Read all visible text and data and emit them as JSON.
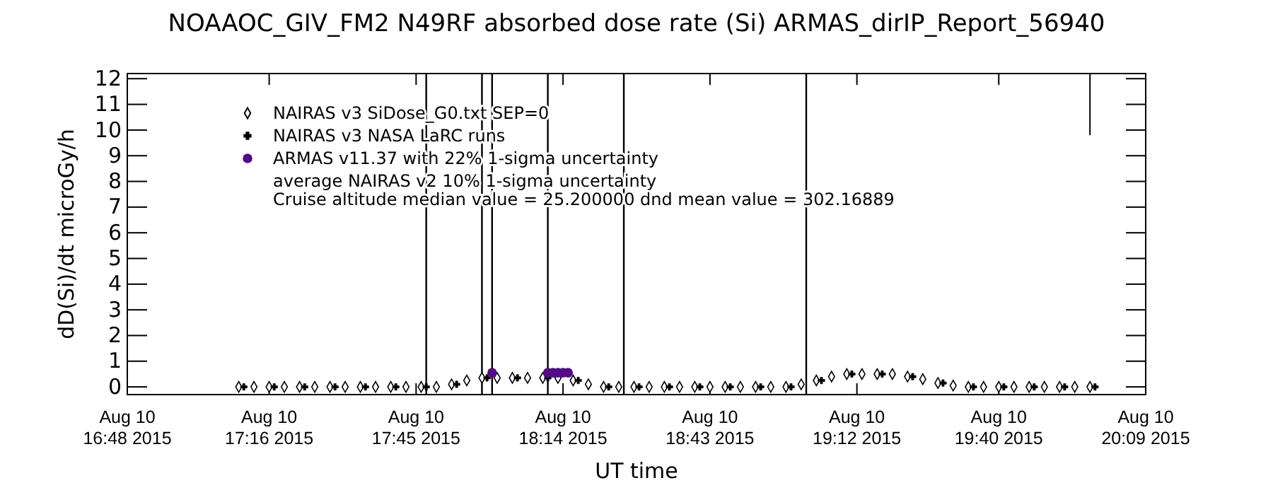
{
  "chart_data": {
    "type": "scatter",
    "title": "NOAAOC_GIV_FM2   N49RF  absorbed dose rate (Si) ARMAS_dirIP_Report_56940",
    "xlabel": "UT time",
    "ylabel": "dD(Si)/dt microGy/h",
    "xlim": [
      "2015-08-10T16:48",
      "2015-08-10T20:09"
    ],
    "xticks": [
      {
        "value": "2015-08-10T16:48",
        "label": "Aug 10\n16:48 2015"
      },
      {
        "value": "2015-08-10T17:16",
        "label": "Aug 10\n17:16 2015"
      },
      {
        "value": "2015-08-10T17:45",
        "label": "Aug 10\n17:45 2015"
      },
      {
        "value": "2015-08-10T18:14",
        "label": "Aug 10\n18:14 2015"
      },
      {
        "value": "2015-08-10T18:43",
        "label": "Aug 10\n18:43 2015"
      },
      {
        "value": "2015-08-10T19:12",
        "label": "Aug 10\n19:12 2015"
      },
      {
        "value": "2015-08-10T19:40",
        "label": "Aug 10\n19:40 2015"
      },
      {
        "value": "2015-08-10T20:09",
        "label": "Aug 10\n20:09 2015"
      }
    ],
    "ylim": [
      -0.3,
      12.2
    ],
    "yticks": [
      0,
      1,
      2,
      3,
      4,
      5,
      6,
      7,
      8,
      9,
      10,
      11,
      12
    ],
    "legend": "top left",
    "series": [
      {
        "name": "NAIRAS v3 SiDose_G0.txt SEP=0",
        "marker": "diamond",
        "color": "#000000",
        "x": [
          "2015-08-10T17:10",
          "2015-08-10T17:13",
          "2015-08-10T17:16",
          "2015-08-10T17:19",
          "2015-08-10T17:22",
          "2015-08-10T17:25",
          "2015-08-10T17:28",
          "2015-08-10T17:31",
          "2015-08-10T17:34",
          "2015-08-10T17:37",
          "2015-08-10T17:40",
          "2015-08-10T17:43",
          "2015-08-10T17:46",
          "2015-08-10T17:49",
          "2015-08-10T17:52",
          "2015-08-10T17:55",
          "2015-08-10T17:58",
          "2015-08-10T18:01",
          "2015-08-10T18:04",
          "2015-08-10T18:07",
          "2015-08-10T18:10",
          "2015-08-10T18:13",
          "2015-08-10T18:16",
          "2015-08-10T18:19",
          "2015-08-10T18:22",
          "2015-08-10T18:25",
          "2015-08-10T18:28",
          "2015-08-10T18:31",
          "2015-08-10T18:34",
          "2015-08-10T18:37",
          "2015-08-10T18:40",
          "2015-08-10T18:43",
          "2015-08-10T18:46",
          "2015-08-10T18:49",
          "2015-08-10T18:52",
          "2015-08-10T18:55",
          "2015-08-10T18:58",
          "2015-08-10T19:01",
          "2015-08-10T19:04",
          "2015-08-10T19:07",
          "2015-08-10T19:10",
          "2015-08-10T19:13",
          "2015-08-10T19:16",
          "2015-08-10T19:19",
          "2015-08-10T19:22",
          "2015-08-10T19:25",
          "2015-08-10T19:28",
          "2015-08-10T19:31",
          "2015-08-10T19:34",
          "2015-08-10T19:37",
          "2015-08-10T19:40",
          "2015-08-10T19:43",
          "2015-08-10T19:46",
          "2015-08-10T19:49",
          "2015-08-10T19:52",
          "2015-08-10T19:55",
          "2015-08-10T19:58"
        ],
        "values": [
          0,
          0,
          0,
          0,
          0,
          0,
          0,
          0,
          0,
          0,
          0,
          0,
          0,
          0,
          0.1,
          0.25,
          0.35,
          0.35,
          0.35,
          0.35,
          0.35,
          0.35,
          0.25,
          0.1,
          0,
          0,
          0,
          0,
          0,
          0,
          0,
          0,
          0,
          0,
          0,
          0,
          0,
          0.1,
          0.25,
          0.4,
          0.5,
          0.5,
          0.5,
          0.5,
          0.4,
          0.3,
          0.15,
          0.05,
          0,
          0,
          0,
          0,
          0,
          0,
          0,
          0,
          0
        ]
      },
      {
        "name": "NAIRAS v3 NASA LaRC runs",
        "marker": "cross",
        "color": "#000000",
        "x": [
          "2015-08-10T17:11",
          "2015-08-10T17:17",
          "2015-08-10T17:23",
          "2015-08-10T17:29",
          "2015-08-10T17:35",
          "2015-08-10T17:41",
          "2015-08-10T17:47",
          "2015-08-10T17:53",
          "2015-08-10T17:59",
          "2015-08-10T18:05",
          "2015-08-10T18:11",
          "2015-08-10T18:17",
          "2015-08-10T18:23",
          "2015-08-10T18:29",
          "2015-08-10T18:35",
          "2015-08-10T18:41",
          "2015-08-10T18:47",
          "2015-08-10T18:53",
          "2015-08-10T18:59",
          "2015-08-10T19:05",
          "2015-08-10T19:11",
          "2015-08-10T19:17",
          "2015-08-10T19:23",
          "2015-08-10T19:29",
          "2015-08-10T19:35",
          "2015-08-10T19:41",
          "2015-08-10T19:47",
          "2015-08-10T19:53",
          "2015-08-10T19:59"
        ],
        "values": [
          0,
          0,
          0,
          0,
          0,
          0,
          0,
          0.1,
          0.35,
          0.35,
          0.35,
          0.25,
          0,
          0,
          0,
          0,
          0,
          0,
          0,
          0.25,
          0.5,
          0.5,
          0.4,
          0.15,
          0,
          0,
          0,
          0,
          0
        ]
      },
      {
        "name": "ARMAS v11.37 with 22% 1-sigma uncertainty",
        "marker": "circle",
        "color": "#550a8a",
        "x": [
          "2015-08-10T18:00",
          "2015-08-10T18:11",
          "2015-08-10T18:12",
          "2015-08-10T18:13",
          "2015-08-10T18:14",
          "2015-08-10T18:15"
        ],
        "values": [
          0.55,
          0.55,
          0.55,
          0.55,
          0.55,
          0.55
        ]
      },
      {
        "type": "line",
        "color": "#000000",
        "x": [
          "2015-08-10T19:58",
          "2015-08-10T19:58"
        ],
        "values": [
          9.8,
          12.2
        ]
      }
    ],
    "ref_lines": [
      {
        "axis": "x",
        "value": "2015-08-10T17:47"
      },
      {
        "axis": "x",
        "value": "2015-08-10T17:58"
      },
      {
        "axis": "x",
        "value": "2015-08-10T18:00"
      },
      {
        "axis": "x",
        "value": "2015-08-10T18:11"
      },
      {
        "axis": "x",
        "value": "2015-08-10T18:26"
      },
      {
        "axis": "x",
        "value": "2015-08-10T19:02"
      }
    ],
    "annotations": [
      "average NAIRAS v2 10% 1-sigma uncertainty",
      "Cruise altitude median value = 25.200000 dnd mean value = 302.16889"
    ]
  }
}
